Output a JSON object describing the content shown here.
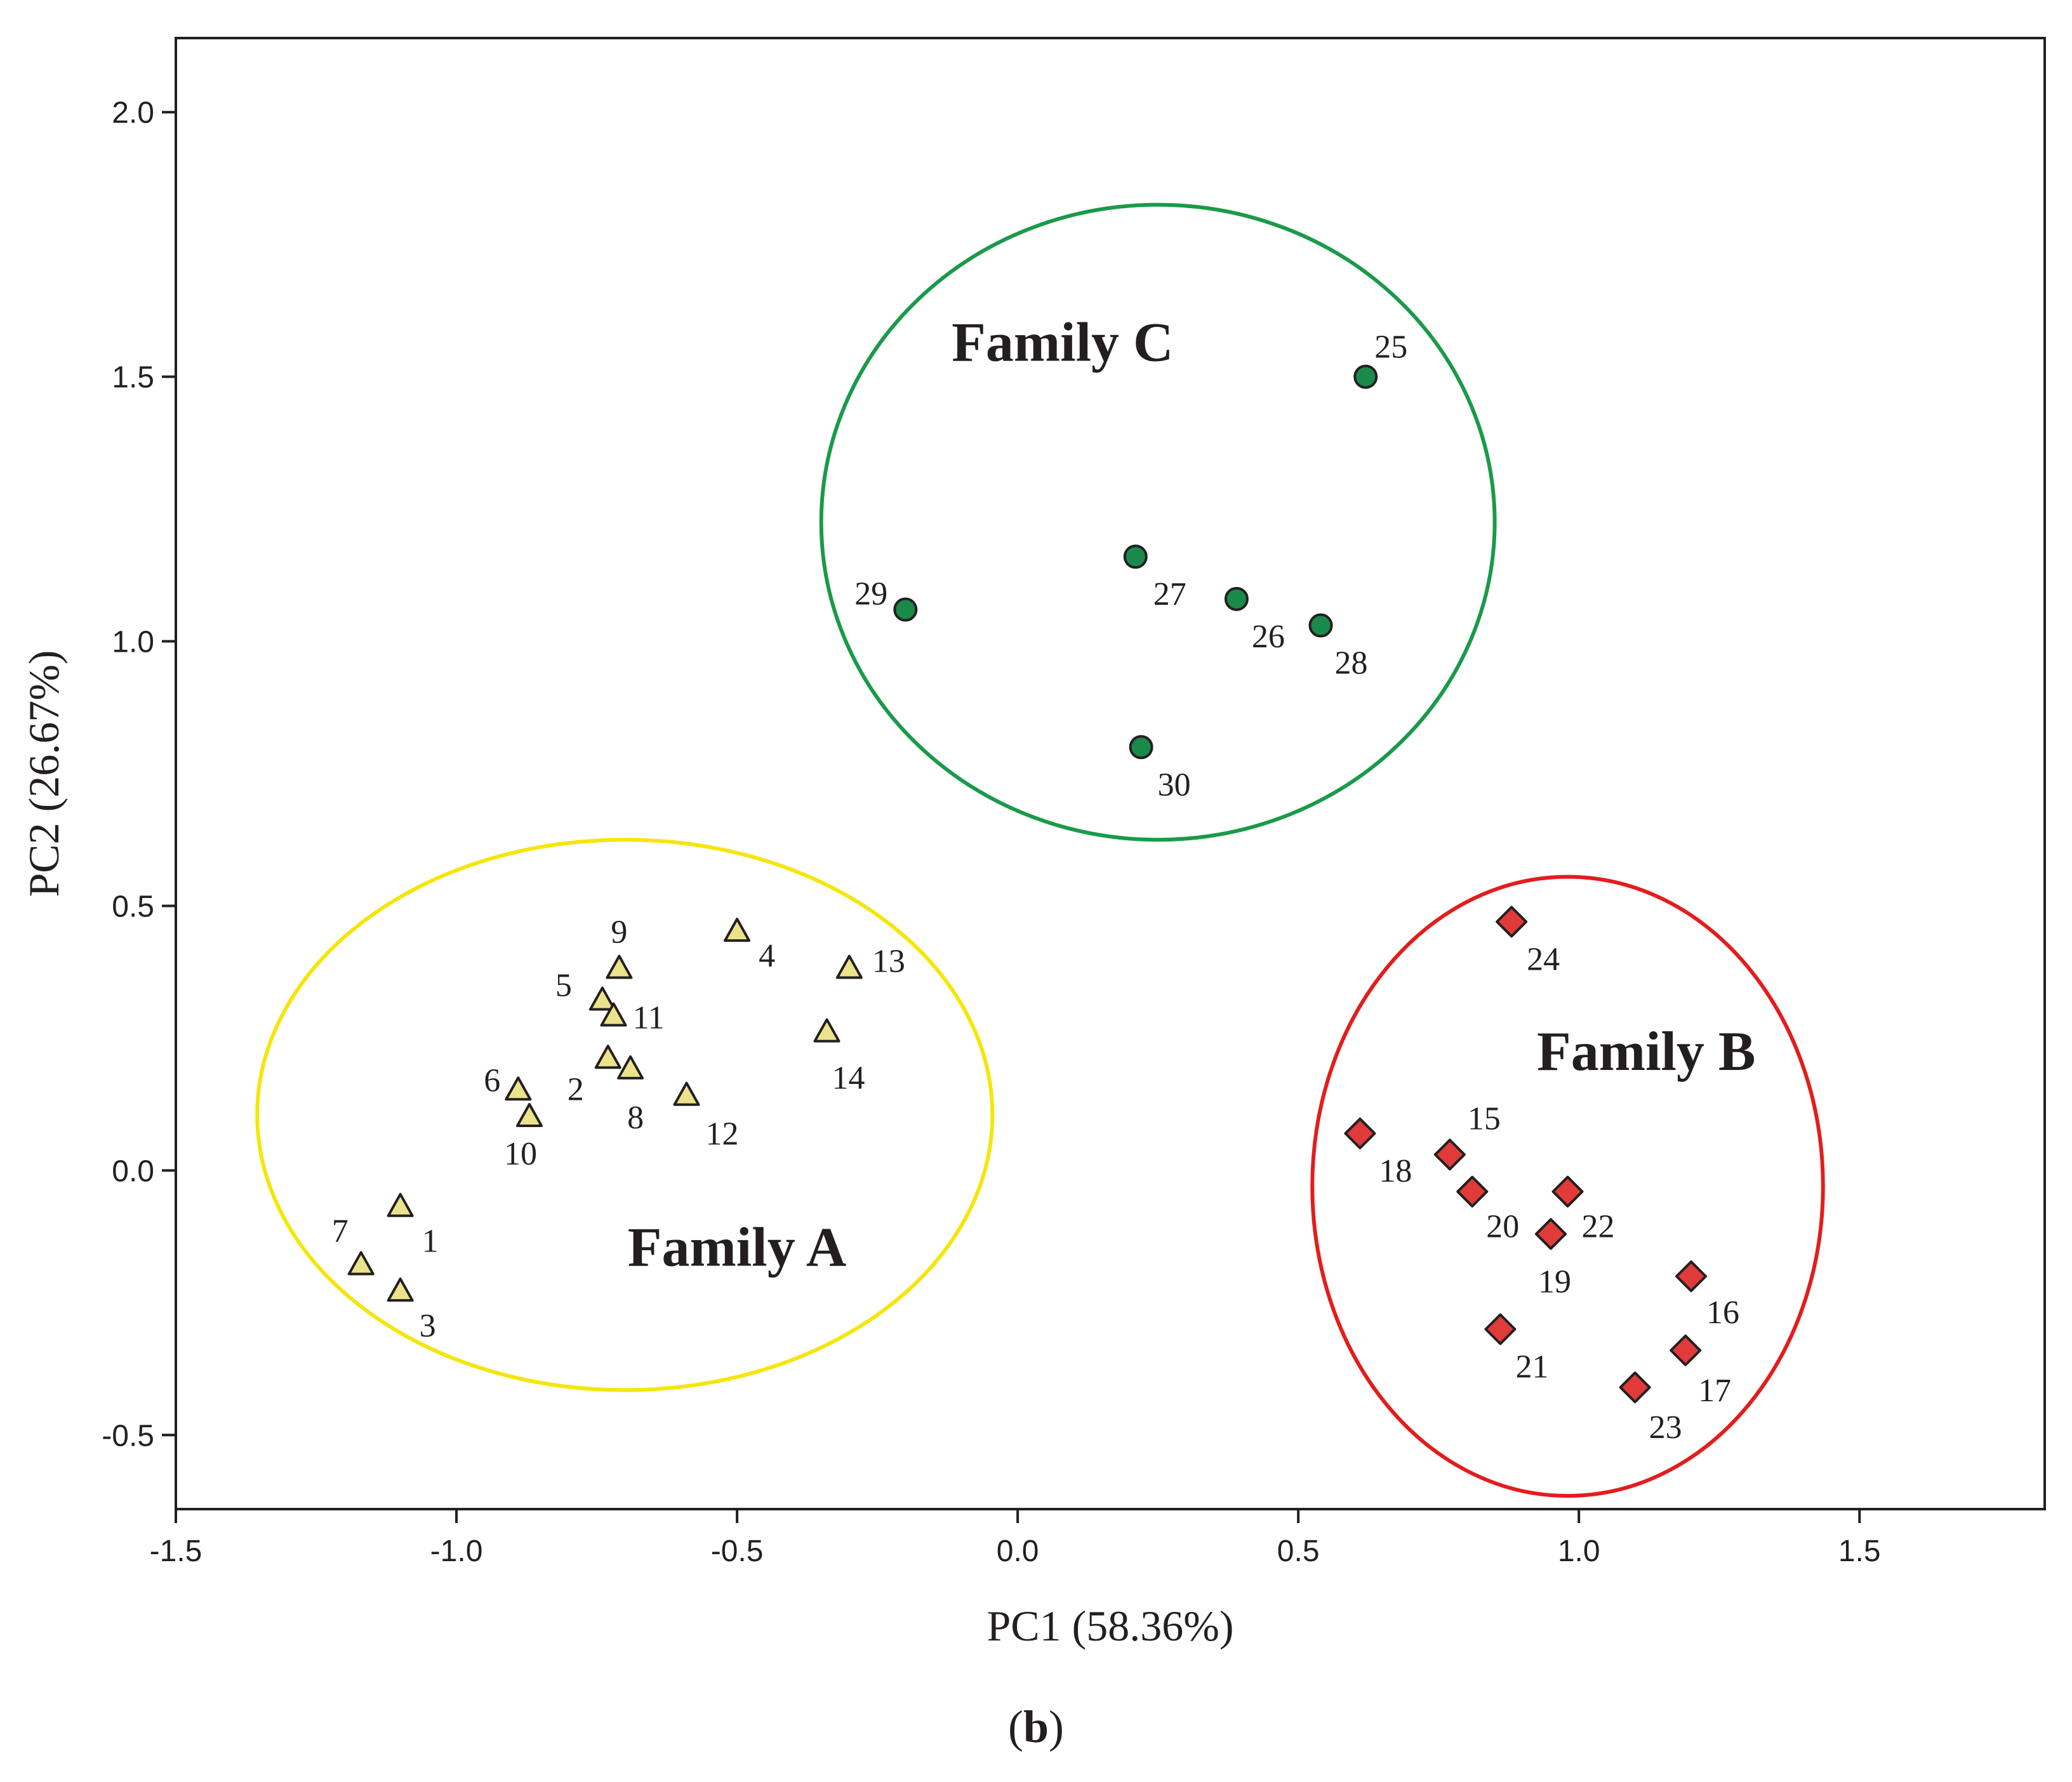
{
  "chart_data": {
    "type": "scatter",
    "xlabel": "PC1 (58.36%)",
    "ylabel": "PC2 (26.67%)",
    "xlim": [
      -1.5,
      1.83
    ],
    "ylim": [
      -0.64,
      2.14
    ],
    "xticks": [
      -1.5,
      -1.0,
      -0.5,
      0.0,
      0.5,
      1.0,
      1.5
    ],
    "xtick_labels": [
      "-1.5",
      "-1.0",
      "-0.5",
      "0.0",
      "0.5",
      "1.0",
      "1.5"
    ],
    "yticks": [
      -0.5,
      0.0,
      0.5,
      1.0,
      1.5,
      2.0
    ],
    "ytick_labels": [
      "-0.5",
      "0.0",
      "0.5",
      "1.0",
      "1.5",
      "2.0"
    ],
    "series": [
      {
        "name": "Family A",
        "marker": "triangle",
        "color": "#ebe38a",
        "ellipse_color": "#f5e60a",
        "ellipse": {
          "cx": -0.7,
          "cy": 0.105,
          "rx": 0.655,
          "ry": 0.52
        },
        "label_pos": {
          "x": -0.5,
          "y": -0.18
        },
        "points": [
          {
            "id": "1",
            "x": -1.1,
            "y": -0.07
          },
          {
            "id": "2",
            "x": -0.73,
            "y": 0.21
          },
          {
            "id": "3",
            "x": -1.1,
            "y": -0.23
          },
          {
            "id": "4",
            "x": -0.5,
            "y": 0.45
          },
          {
            "id": "5",
            "x": -0.74,
            "y": 0.32
          },
          {
            "id": "6",
            "x": -0.89,
            "y": 0.15
          },
          {
            "id": "7",
            "x": -1.17,
            "y": -0.18
          },
          {
            "id": "8",
            "x": -0.69,
            "y": 0.19
          },
          {
            "id": "9",
            "x": -0.71,
            "y": 0.38
          },
          {
            "id": "10",
            "x": -0.87,
            "y": 0.1
          },
          {
            "id": "11",
            "x": -0.72,
            "y": 0.29
          },
          {
            "id": "12",
            "x": -0.59,
            "y": 0.14
          },
          {
            "id": "13",
            "x": -0.3,
            "y": 0.38
          },
          {
            "id": "14",
            "x": -0.34,
            "y": 0.26
          }
        ]
      },
      {
        "name": "Family B",
        "marker": "diamond",
        "color": "#e03a3a",
        "ellipse_color": "#e31d1d",
        "ellipse": {
          "cx": 0.98,
          "cy": -0.03,
          "rx": 0.455,
          "ry": 0.585
        },
        "label_pos": {
          "x": 1.12,
          "y": 0.19
        },
        "points": [
          {
            "id": "15",
            "x": 0.77,
            "y": 0.03
          },
          {
            "id": "16",
            "x": 1.2,
            "y": -0.2
          },
          {
            "id": "17",
            "x": 1.19,
            "y": -0.34
          },
          {
            "id": "18",
            "x": 0.61,
            "y": 0.07
          },
          {
            "id": "19",
            "x": 0.95,
            "y": -0.12
          },
          {
            "id": "20",
            "x": 0.81,
            "y": -0.04
          },
          {
            "id": "21",
            "x": 0.86,
            "y": -0.3
          },
          {
            "id": "22",
            "x": 0.98,
            "y": -0.04
          },
          {
            "id": "23",
            "x": 1.1,
            "y": -0.41
          },
          {
            "id": "24",
            "x": 0.88,
            "y": 0.47
          }
        ]
      },
      {
        "name": "Family C",
        "marker": "circle",
        "color": "#1a8a4a",
        "ellipse_color": "#1a9a4a",
        "ellipse": {
          "cx": 0.25,
          "cy": 1.225,
          "rx": 0.6,
          "ry": 0.6
        },
        "label_pos": {
          "x": 0.08,
          "y": 1.53
        },
        "points": [
          {
            "id": "25",
            "x": 0.62,
            "y": 1.5
          },
          {
            "id": "26",
            "x": 0.39,
            "y": 1.08
          },
          {
            "id": "27",
            "x": 0.21,
            "y": 1.16
          },
          {
            "id": "28",
            "x": 0.54,
            "y": 1.03
          },
          {
            "id": "29",
            "x": -0.2,
            "y": 1.06
          },
          {
            "id": "30",
            "x": 0.22,
            "y": 0.8
          }
        ]
      }
    ]
  },
  "caption": {
    "open": "(",
    "letter": "b",
    "close": ")"
  }
}
